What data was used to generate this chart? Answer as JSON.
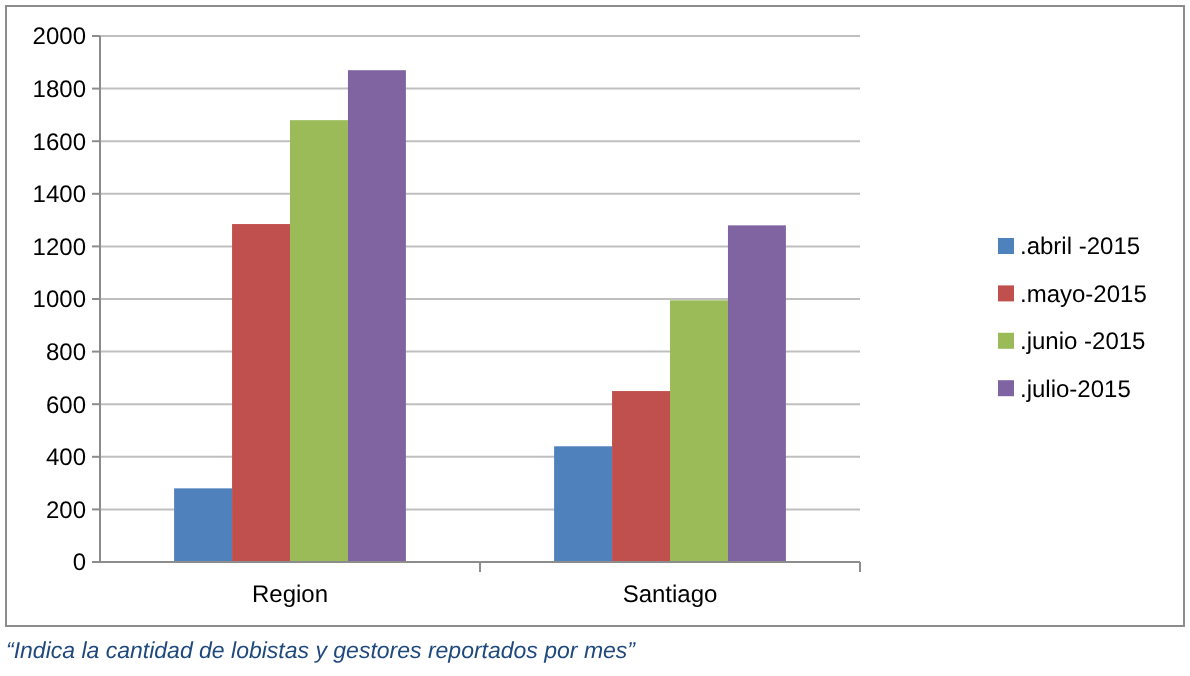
{
  "chart_data": {
    "type": "bar",
    "categories": [
      "Region",
      "Santiago"
    ],
    "series": [
      {
        "name": ".abril -2015",
        "color": "#4f81bd",
        "values": [
          280,
          440
        ]
      },
      {
        "name": ".mayo-2015",
        "color": "#c0504d",
        "values": [
          1285,
          650
        ]
      },
      {
        "name": ".junio -2015",
        "color": "#9bbb59",
        "values": [
          1680,
          995
        ]
      },
      {
        "name": ".julio-2015",
        "color": "#8064a2",
        "values": [
          1870,
          1280
        ]
      }
    ],
    "ylim": [
      0,
      2000
    ],
    "yticks": [
      0,
      200,
      400,
      600,
      800,
      1000,
      1200,
      1400,
      1600,
      1800,
      2000
    ],
    "grid": "y",
    "legend": "right",
    "annotations": [
      "“Indica la cantidad de lobistas y gestores reportados por mes”"
    ]
  }
}
